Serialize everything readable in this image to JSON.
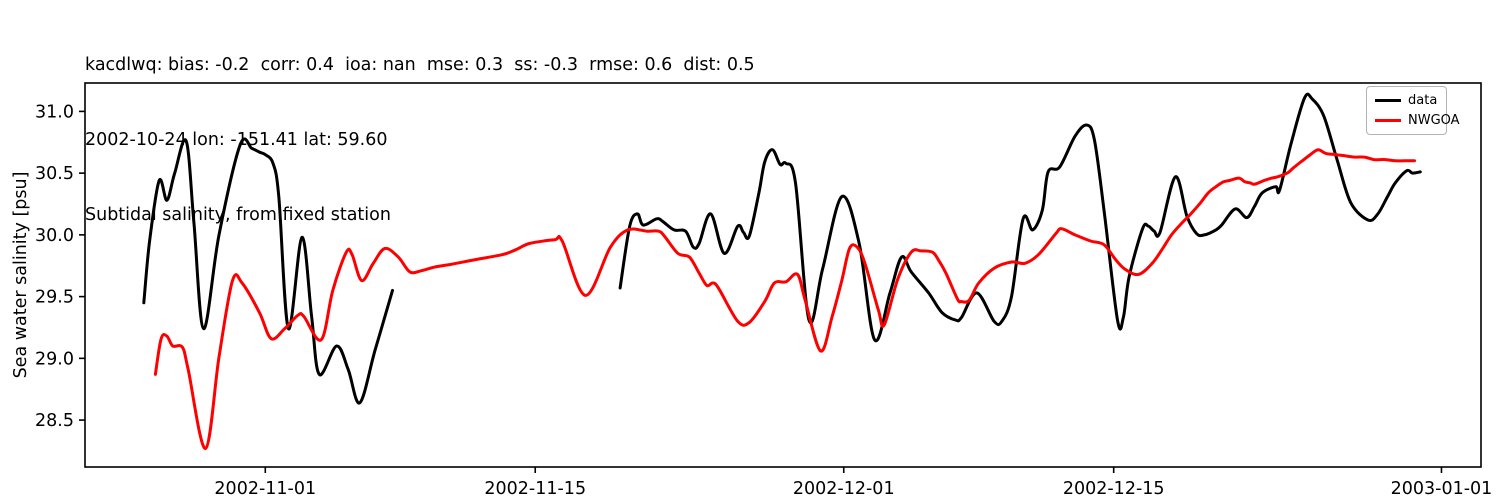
{
  "header": {
    "line1": "kacdlwq: bias: -0.2  corr: 0.4  ioa: nan  mse: 0.3  ss: -0.3  rmse: 0.6  dist: 0.5",
    "line2": "2002-10-24 lon: -151.41 lat: 59.60",
    "line3": "Subtidal salinity, from fixed station"
  },
  "chart_data": {
    "type": "line",
    "title": "Subtidal salinity, from fixed station",
    "station": "kacdlwq",
    "stats": {
      "bias": -0.2,
      "corr": 0.4,
      "ioa": "nan",
      "mse": 0.3,
      "ss": -0.3,
      "rmse": 0.6,
      "dist": 0.5
    },
    "start_date": "2002-10-24",
    "lon": -151.41,
    "lat": 59.6,
    "ylabel": "Sea water salinity [psu]",
    "xlabel": "",
    "x_unit": "days since 2002-10-24",
    "xlim": [
      -1.35,
      71.05
    ],
    "ylim": [
      28.12,
      31.23
    ],
    "grid": false,
    "legend_position": "upper right",
    "xticks": [
      {
        "x": 8,
        "label": "2002-11-01"
      },
      {
        "x": 22,
        "label": "2002-11-15"
      },
      {
        "x": 38,
        "label": "2002-12-01"
      },
      {
        "x": 52,
        "label": "2002-12-15"
      },
      {
        "x": 69,
        "label": "2003-01-01"
      }
    ],
    "yticks": [
      28.5,
      29.0,
      29.5,
      30.0,
      30.5,
      31.0
    ],
    "series": [
      {
        "name": "data",
        "color": "#000000",
        "segments": [
          [
            [
              1.7,
              29.45
            ],
            [
              2.0,
              29.95
            ],
            [
              2.5,
              30.44
            ],
            [
              2.9,
              30.28
            ],
            [
              3.3,
              30.5
            ],
            [
              3.9,
              30.76
            ],
            [
              4.3,
              30.1
            ],
            [
              4.8,
              29.24
            ],
            [
              5.6,
              30.0
            ],
            [
              6.7,
              30.73
            ],
            [
              7.3,
              30.7
            ],
            [
              7.7,
              30.67
            ],
            [
              8.0,
              30.65
            ],
            [
              8.4,
              30.58
            ],
            [
              8.7,
              30.31
            ],
            [
              9.2,
              29.24
            ],
            [
              9.9,
              29.98
            ],
            [
              10.4,
              29.34
            ],
            [
              10.8,
              28.87
            ],
            [
              11.7,
              29.1
            ],
            [
              12.3,
              28.91
            ],
            [
              12.9,
              28.64
            ],
            [
              13.7,
              29.07
            ],
            [
              14.6,
              29.55
            ]
          ],
          [
            [
              26.4,
              29.57
            ],
            [
              26.9,
              30.07
            ],
            [
              27.3,
              30.17
            ],
            [
              27.6,
              30.08
            ],
            [
              28.3,
              30.13
            ],
            [
              28.6,
              30.11
            ],
            [
              29.2,
              30.04
            ],
            [
              29.8,
              30.03
            ],
            [
              30.2,
              29.9
            ],
            [
              30.5,
              29.93
            ],
            [
              31.1,
              30.17
            ],
            [
              31.8,
              29.85
            ],
            [
              32.5,
              30.07
            ],
            [
              32.8,
              30.02
            ],
            [
              33.1,
              29.99
            ],
            [
              33.6,
              30.34
            ],
            [
              33.9,
              30.59
            ],
            [
              34.3,
              30.69
            ],
            [
              34.7,
              30.57
            ],
            [
              35.0,
              30.58
            ],
            [
              35.5,
              30.42
            ],
            [
              36.2,
              29.31
            ],
            [
              36.9,
              29.72
            ],
            [
              37.9,
              30.31
            ],
            [
              38.8,
              29.93
            ],
            [
              39.6,
              29.15
            ],
            [
              40.4,
              29.53
            ],
            [
              41.0,
              29.82
            ],
            [
              41.5,
              29.7
            ],
            [
              42.4,
              29.53
            ],
            [
              43.1,
              29.37
            ],
            [
              43.8,
              29.31
            ],
            [
              44.1,
              29.33
            ],
            [
              44.9,
              29.53
            ],
            [
              45.8,
              29.3
            ],
            [
              46.2,
              29.3
            ],
            [
              46.7,
              29.5
            ],
            [
              47.3,
              30.13
            ],
            [
              47.8,
              30.04
            ],
            [
              48.3,
              30.2
            ],
            [
              48.6,
              30.51
            ],
            [
              49.2,
              30.55
            ],
            [
              50.0,
              30.8
            ],
            [
              50.6,
              30.89
            ],
            [
              51.0,
              30.77
            ],
            [
              51.5,
              30.2
            ],
            [
              52.2,
              29.31
            ],
            [
              52.5,
              29.33
            ],
            [
              52.8,
              29.66
            ],
            [
              53.5,
              30.05
            ],
            [
              53.8,
              30.07
            ],
            [
              54.1,
              30.03
            ],
            [
              54.4,
              30.02
            ],
            [
              55.2,
              30.47
            ],
            [
              55.8,
              30.15
            ],
            [
              56.3,
              30.01
            ],
            [
              56.7,
              30.0
            ],
            [
              57.3,
              30.04
            ],
            [
              57.6,
              30.08
            ],
            [
              58.3,
              30.21
            ],
            [
              58.9,
              30.14
            ],
            [
              59.3,
              30.23
            ],
            [
              59.7,
              30.34
            ],
            [
              60.4,
              30.39
            ],
            [
              60.6,
              30.36
            ],
            [
              61.2,
              30.74
            ],
            [
              61.9,
              31.11
            ],
            [
              62.3,
              31.1
            ],
            [
              62.9,
              30.96
            ],
            [
              63.6,
              30.6
            ],
            [
              64.3,
              30.26
            ],
            [
              65.2,
              30.12
            ],
            [
              65.7,
              30.17
            ],
            [
              66.2,
              30.31
            ],
            [
              66.6,
              30.42
            ],
            [
              67.2,
              30.52
            ],
            [
              67.5,
              30.5
            ],
            [
              67.9,
              30.51
            ]
          ]
        ]
      },
      {
        "name": "NWGOA",
        "color": "#ff0000",
        "segments": [
          [
            [
              2.3,
              28.87
            ],
            [
              2.6,
              29.16
            ],
            [
              2.9,
              29.18
            ],
            [
              3.2,
              29.1
            ],
            [
              3.7,
              29.09
            ],
            [
              4.0,
              28.91
            ],
            [
              4.9,
              28.27
            ],
            [
              5.6,
              29.01
            ],
            [
              6.3,
              29.63
            ],
            [
              6.8,
              29.61
            ],
            [
              7.7,
              29.37
            ],
            [
              8.3,
              29.16
            ],
            [
              9.0,
              29.24
            ],
            [
              9.7,
              29.35
            ],
            [
              10.0,
              29.34
            ],
            [
              10.9,
              29.15
            ],
            [
              11.5,
              29.55
            ],
            [
              12.2,
              29.86
            ],
            [
              12.5,
              29.84
            ],
            [
              13.0,
              29.63
            ],
            [
              13.6,
              29.77
            ],
            [
              14.2,
              29.89
            ],
            [
              14.9,
              29.82
            ],
            [
              15.5,
              29.7
            ],
            [
              16.1,
              29.71
            ],
            [
              16.8,
              29.74
            ],
            [
              17.6,
              29.76
            ],
            [
              18.9,
              29.8
            ],
            [
              20.3,
              29.84
            ],
            [
              21.0,
              29.88
            ],
            [
              21.7,
              29.93
            ],
            [
              23.0,
              29.96
            ],
            [
              23.4,
              29.95
            ],
            [
              24.6,
              29.51
            ],
            [
              25.9,
              29.9
            ],
            [
              26.8,
              30.04
            ],
            [
              27.8,
              30.03
            ],
            [
              28.4,
              30.03
            ],
            [
              28.7,
              29.99
            ],
            [
              29.4,
              29.85
            ],
            [
              30.0,
              29.82
            ],
            [
              30.5,
              29.69
            ],
            [
              30.9,
              29.59
            ],
            [
              31.2,
              29.61
            ],
            [
              31.5,
              29.57
            ],
            [
              32.5,
              29.3
            ],
            [
              33.1,
              29.29
            ],
            [
              33.9,
              29.46
            ],
            [
              34.4,
              29.61
            ],
            [
              35.0,
              29.62
            ],
            [
              35.6,
              29.68
            ],
            [
              36.0,
              29.47
            ],
            [
              36.8,
              29.06
            ],
            [
              37.4,
              29.34
            ],
            [
              37.9,
              29.63
            ],
            [
              38.3,
              29.89
            ],
            [
              38.7,
              29.9
            ],
            [
              39.1,
              29.77
            ],
            [
              39.8,
              29.39
            ],
            [
              40.1,
              29.27
            ],
            [
              40.8,
              29.64
            ],
            [
              41.5,
              29.86
            ],
            [
              42.0,
              29.87
            ],
            [
              42.6,
              29.86
            ],
            [
              42.9,
              29.8
            ],
            [
              43.3,
              29.69
            ],
            [
              43.9,
              29.48
            ],
            [
              44.1,
              29.46
            ],
            [
              44.5,
              29.47
            ],
            [
              45.0,
              29.61
            ],
            [
              45.8,
              29.73
            ],
            [
              46.7,
              29.78
            ],
            [
              47.4,
              29.77
            ],
            [
              48.1,
              29.84
            ],
            [
              49.0,
              30.01
            ],
            [
              49.3,
              30.05
            ],
            [
              50.0,
              30.0
            ],
            [
              50.8,
              29.95
            ],
            [
              51.5,
              29.92
            ],
            [
              52.1,
              29.8
            ],
            [
              52.6,
              29.72
            ],
            [
              53.3,
              29.68
            ],
            [
              54.0,
              29.77
            ],
            [
              54.5,
              29.88
            ],
            [
              55.0,
              30.0
            ],
            [
              55.5,
              30.09
            ],
            [
              56.0,
              30.17
            ],
            [
              56.5,
              30.26
            ],
            [
              56.9,
              30.34
            ],
            [
              57.3,
              30.39
            ],
            [
              57.7,
              30.43
            ],
            [
              58.0,
              30.44
            ],
            [
              58.5,
              30.46
            ],
            [
              58.8,
              30.43
            ],
            [
              59.1,
              30.42
            ],
            [
              59.3,
              30.41
            ],
            [
              59.8,
              30.44
            ],
            [
              60.2,
              30.46
            ],
            [
              60.5,
              30.47
            ],
            [
              61.0,
              30.5
            ],
            [
              61.3,
              30.54
            ],
            [
              61.7,
              30.59
            ],
            [
              62.2,
              30.65
            ],
            [
              62.6,
              30.69
            ],
            [
              63.0,
              30.66
            ],
            [
              63.5,
              30.65
            ],
            [
              64.0,
              30.64
            ],
            [
              64.5,
              30.63
            ],
            [
              65.0,
              30.63
            ],
            [
              65.5,
              30.61
            ],
            [
              66.1,
              30.61
            ],
            [
              66.6,
              30.6
            ],
            [
              67.1,
              30.6
            ],
            [
              67.6,
              30.6
            ]
          ]
        ]
      }
    ]
  }
}
